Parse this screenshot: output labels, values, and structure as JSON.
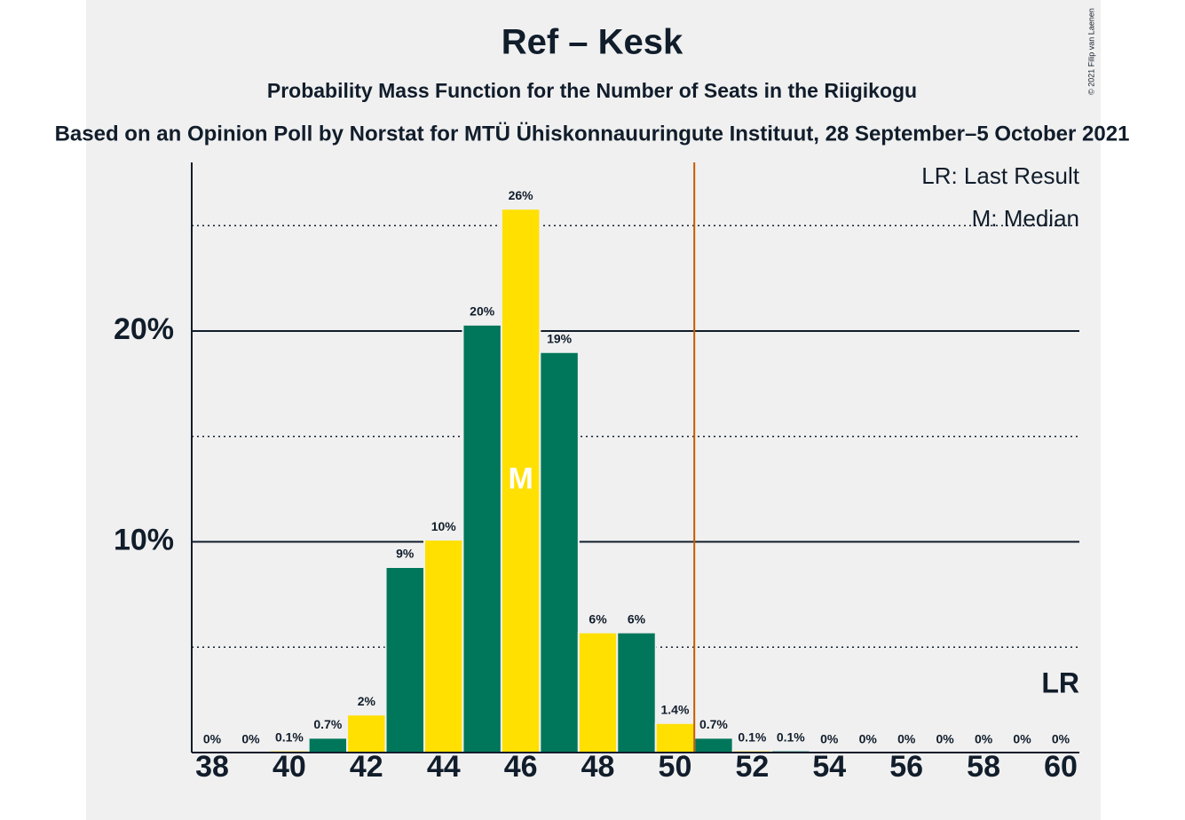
{
  "chart_data": {
    "type": "bar",
    "title": "Ref – Kesk",
    "subtitle": "Probability Mass Function for the Number of Seats in the Riigikogu",
    "source": "Based on an Opinion Poll by Norstat for MTÜ Ühiskonnauuringute Instituut, 28 September–5 October 2021",
    "copyright": "© 2021 Filip van Laenen",
    "legend": [
      "LR: Last Result",
      "M: Median"
    ],
    "categories": [
      "38",
      null,
      "40",
      null,
      "42",
      null,
      "44",
      null,
      "46",
      null,
      "48",
      null,
      "50",
      null,
      "52",
      null,
      "54",
      null,
      "56",
      null,
      "58",
      null,
      "60"
    ],
    "values": [
      0,
      0,
      0.1,
      0.7,
      1.8,
      8.8,
      10.1,
      20.3,
      25.8,
      19.0,
      5.7,
      5.7,
      1.4,
      0.7,
      0.1,
      0.1,
      0,
      0,
      0,
      0,
      0,
      0,
      0
    ],
    "value_labels": [
      "0%",
      "0%",
      "0.1%",
      "0.7%",
      "2%",
      "9%",
      "10%",
      "20%",
      "26%",
      "19%",
      "6%",
      "6%",
      "1.4%",
      "0.7%",
      "0.1%",
      "0.1%",
      "0%",
      "0%",
      "0%",
      "0%",
      "0%",
      "0%",
      "0%"
    ],
    "colors": [
      "#ffe000",
      "#00765a",
      "#ffe000",
      "#00765a",
      "#ffe000",
      "#00765a",
      "#ffe000",
      "#00765a",
      "#ffe000",
      "#00765a",
      "#ffe000",
      "#00765a",
      "#ffe000",
      "#00765a",
      "#ffe000",
      "#00765a",
      "#ffe000",
      "#00765a",
      "#ffe000",
      "#00765a",
      "#ffe000",
      "#00765a",
      "#ffe000"
    ],
    "median_index": 8,
    "median_label": "M",
    "threshold_line": 12.5,
    "threshold_color": "#c85a00",
    "last_result_label": "LR",
    "ylim": [
      0,
      28
    ],
    "yticks": [
      {
        "value": 10,
        "label": "10%"
      },
      {
        "value": 20,
        "label": "20%"
      }
    ],
    "minor_yticks": [
      5,
      15,
      25
    ],
    "grid": true
  }
}
